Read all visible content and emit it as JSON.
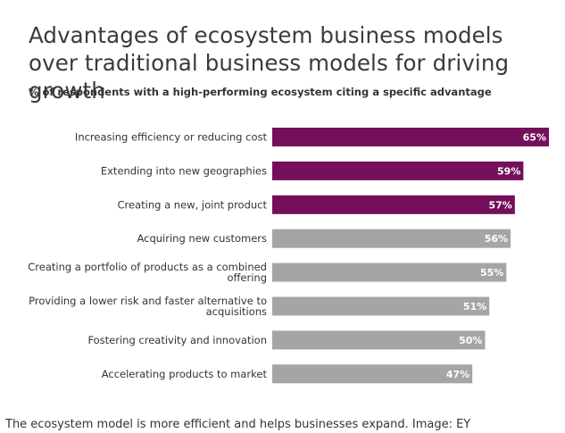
{
  "chart_data": {
    "type": "bar",
    "orientation": "horizontal",
    "title": "Advantages of ecosystem business models over traditional business models for driving growth",
    "subtitle": "% of respondents with a high-performing ecosystem citing a specific advantage",
    "categories": [
      "Increasing efficiency or reducing cost",
      "Extending into new geographies",
      "Creating a new, joint product",
      "Acquiring new customers",
      "Creating a portfolio of products as a combined offering",
      "Providing a lower risk and faster alternative to acquisitions",
      "Fostering creativity and innovation",
      "Accelerating products to market"
    ],
    "category_lines": [
      [
        "Increasing efficiency or reducing cost"
      ],
      [
        "Extending into new geographies"
      ],
      [
        "Creating a new, joint product"
      ],
      [
        "Acquiring new customers"
      ],
      [
        "Creating a portfolio of products as a combined",
        "offering"
      ],
      [
        "Providing a lower risk and faster alternative to",
        "acquisitions"
      ],
      [
        "Fostering creativity and innovation"
      ],
      [
        "Accelerating products to market"
      ]
    ],
    "values": [
      65,
      59,
      57,
      56,
      55,
      51,
      50,
      47
    ],
    "value_labels": [
      "65%",
      "59%",
      "57%",
      "56%",
      "55%",
      "51%",
      "50%",
      "47%"
    ],
    "highlighted": [
      true,
      true,
      true,
      false,
      false,
      false,
      false,
      false
    ],
    "colors": {
      "highlight": "#750f5b",
      "default": "#a5a5a5",
      "value_label": "#ffffff"
    },
    "xlim": [
      0,
      65
    ],
    "grid": false,
    "legend": "none"
  },
  "caption": "The ecosystem model is more efficient and helps businesses expand. Image: EY"
}
